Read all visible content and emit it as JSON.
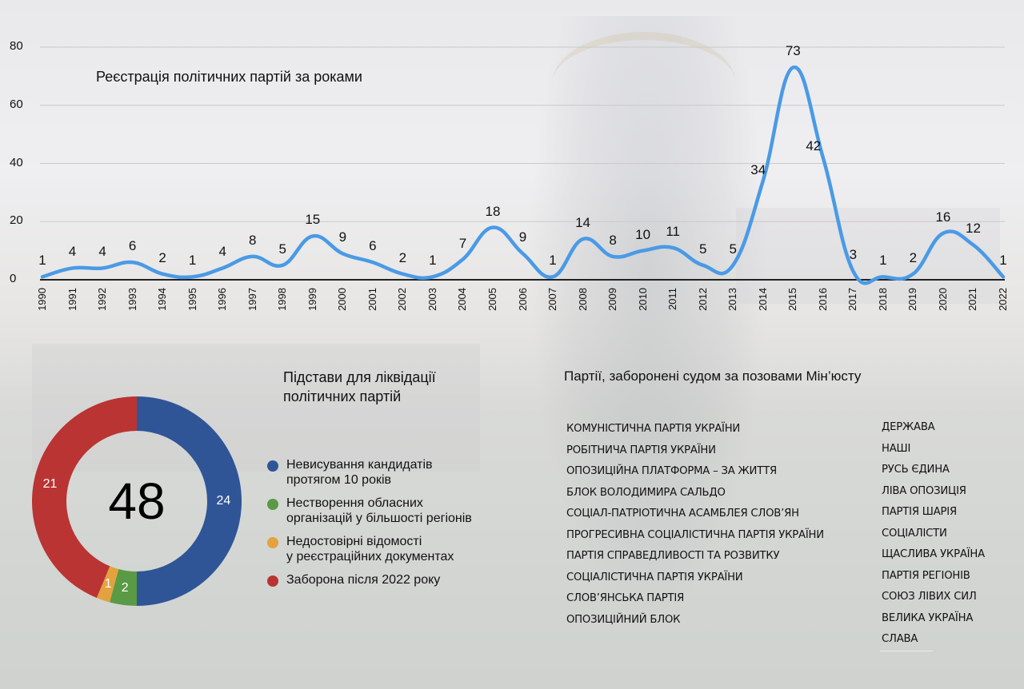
{
  "line_chart": {
    "title": "Реєстрація політичних партій за роками",
    "y_ticks": [
      "0",
      "20",
      "40",
      "60",
      "80"
    ],
    "line_color": "#4a9ae6"
  },
  "donut": {
    "title_line1": "Підстави для ліквідації",
    "title_line2": "політичних партій",
    "total": "48",
    "segments": [
      {
        "label": "Невисування кандидатів протягом 10 років",
        "value": 24,
        "color": "#2f5597"
      },
      {
        "label": "Нестворення обласних організацій у більшості регіонів",
        "value": 2,
        "color": "#5a9a45"
      },
      {
        "label": "Недостовірні відомості у реєстраційних документах",
        "value": 1,
        "color": "#e3a23e"
      },
      {
        "label": "Заборона після 2022 року",
        "value": 21,
        "color": "#b93433"
      }
    ],
    "legend": [
      {
        "line1": "Невисування кандидатів",
        "line2": "протягом 10 років",
        "color": "#2f5597"
      },
      {
        "line1": "Нестворення обласних",
        "line2": "організацій у більшості регіонів",
        "color": "#5a9a45"
      },
      {
        "line1": "Недостовірні відомості",
        "line2": "у реєстраційних документах",
        "color": "#e3a23e"
      },
      {
        "line1": "Заборона після 2022 року",
        "line2": "",
        "color": "#b93433"
      }
    ]
  },
  "banned": {
    "title": "Партії, заборонені судом за позовами Мін’юсту",
    "left": [
      "КОМУНІСТИЧНА ПАРТІЯ УКРАЇНИ",
      "РОБІТНИЧА ПАРТІЯ УКРАЇНИ",
      "ОПОЗИЦІЙНА ПЛАТФОРМА – ЗА ЖИТТЯ",
      "БЛОК ВОЛОДИМИРА САЛЬДО",
      "СОЦІАЛ-ПАТРІОТИЧНА АСАМБЛЕЯ СЛОВ’ЯН",
      "ПРОГРЕСИВНА СОЦІАЛІСТИЧНА ПАРТІЯ УКРАЇНИ",
      "ПАРТІЯ СПРАВЕДЛИВОСТІ ТА РОЗВИТКУ",
      "СОЦІАЛІСТИЧНА ПАРТІЯ УКРАЇНИ",
      "СЛОВ’ЯНСЬКА ПАРТІЯ",
      "ОПОЗИЦІЙНИЙ БЛОК"
    ],
    "right": [
      "ДЕРЖАВА",
      "НАШІ",
      "РУСЬ ЄДИНА",
      "ЛІВА ОПОЗИЦІЯ",
      "ПАРТІЯ ШАРІЯ",
      "СОЦІАЛІСТИ",
      "ЩАСЛИВА УКРАЇНА",
      "ПАРТІЯ РЕГІОНІВ",
      "СОЮЗ ЛІВИХ СИЛ",
      "ВЕЛИКА УКРАЇНА",
      "СЛАВА"
    ]
  },
  "chart_data": [
    {
      "type": "line",
      "title": "Реєстрація політичних партій за роками",
      "xlabel": "",
      "ylabel": "",
      "categories": [
        "1990",
        "1991",
        "1992",
        "1993",
        "1994",
        "1995",
        "1996",
        "1997",
        "1998",
        "1999",
        "2000",
        "2001",
        "2002",
        "2003",
        "2004",
        "2005",
        "2006",
        "2007",
        "2008",
        "2009",
        "2010",
        "2011",
        "2012",
        "2013",
        "2014",
        "2015",
        "2016",
        "2017",
        "2018",
        "2019",
        "2020",
        "2021",
        "2022"
      ],
      "values": [
        1,
        4,
        4,
        6,
        2,
        1,
        4,
        8,
        5,
        15,
        9,
        6,
        2,
        1,
        7,
        18,
        9,
        1,
        14,
        8,
        10,
        11,
        5,
        5,
        34,
        73,
        42,
        3,
        1,
        2,
        16,
        12,
        1
      ],
      "ylim": [
        0,
        80
      ],
      "y_ticks": [
        0,
        20,
        40,
        60,
        80
      ],
      "grid": true,
      "smooth": true,
      "data_labels": true,
      "color": "#4a9ae6"
    },
    {
      "type": "pie",
      "subtype": "donut",
      "title": "Підстави для ліквідації політичних партій",
      "center_label": "48",
      "categories": [
        "Невисування кандидатів протягом 10 років",
        "Нестворення обласних організацій у більшості регіонів",
        "Недостовірні відомості у реєстраційних документах",
        "Заборона після 2022 року"
      ],
      "values": [
        24,
        2,
        1,
        21
      ],
      "colors": [
        "#2f5597",
        "#5a9a45",
        "#e3a23e",
        "#b93433"
      ],
      "legend_position": "right"
    }
  ]
}
